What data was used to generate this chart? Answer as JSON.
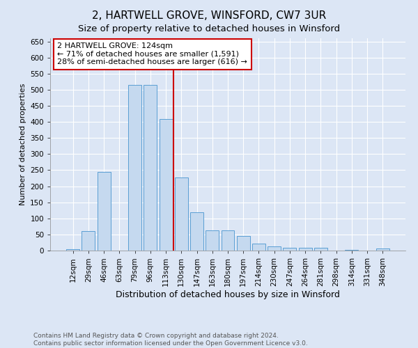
{
  "title": "2, HARTWELL GROVE, WINSFORD, CW7 3UR",
  "subtitle": "Size of property relative to detached houses in Winsford",
  "xlabel": "Distribution of detached houses by size in Winsford",
  "ylabel": "Number of detached properties",
  "categories": [
    "12sqm",
    "29sqm",
    "46sqm",
    "63sqm",
    "79sqm",
    "96sqm",
    "113sqm",
    "130sqm",
    "147sqm",
    "163sqm",
    "180sqm",
    "197sqm",
    "214sqm",
    "230sqm",
    "247sqm",
    "264sqm",
    "281sqm",
    "298sqm",
    "314sqm",
    "331sqm",
    "348sqm"
  ],
  "values": [
    5,
    60,
    245,
    0,
    515,
    515,
    410,
    228,
    120,
    63,
    63,
    46,
    22,
    12,
    8,
    8,
    8,
    0,
    3,
    0,
    7
  ],
  "bar_color": "#c5d9ef",
  "bar_edge_color": "#5a9fd4",
  "bar_width": 0.85,
  "ylim": [
    0,
    660
  ],
  "yticks": [
    0,
    50,
    100,
    150,
    200,
    250,
    300,
    350,
    400,
    450,
    500,
    550,
    600,
    650
  ],
  "property_bin_index": 6,
  "vline_x_offset": 0.48,
  "annotation_title": "2 HARTWELL GROVE: 124sqm",
  "annotation_line1": "← 71% of detached houses are smaller (1,591)",
  "annotation_line2": "28% of semi-detached houses are larger (616) →",
  "annotation_box_color": "#ffffff",
  "annotation_box_edge": "#cc0000",
  "vline_color": "#cc0000",
  "bg_color": "#dce6f5",
  "plot_bg_color": "#dce6f5",
  "grid_color": "#ffffff",
  "footer1": "Contains HM Land Registry data © Crown copyright and database right 2024.",
  "footer2": "Contains public sector information licensed under the Open Government Licence v3.0.",
  "title_fontsize": 11,
  "subtitle_fontsize": 9.5,
  "xlabel_fontsize": 9,
  "ylabel_fontsize": 8,
  "tick_fontsize": 7.5,
  "annotation_fontsize": 8,
  "footer_fontsize": 6.5
}
